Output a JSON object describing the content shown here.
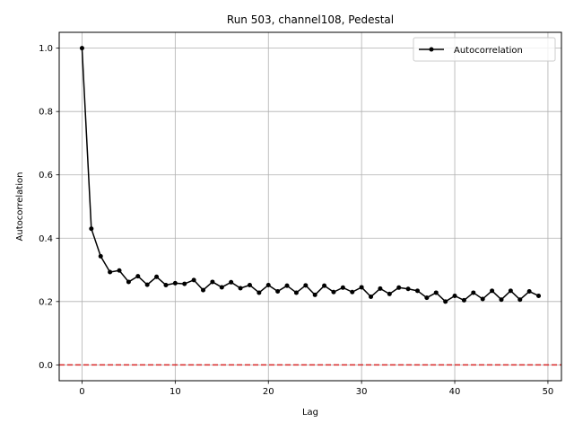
{
  "chart_data": {
    "type": "line",
    "title": "Run 503, channel108, Pedestal",
    "xlabel": "Lag",
    "ylabel": "Autocorrelation",
    "xlim": [
      -2.45,
      51.45
    ],
    "ylim": [
      -0.05,
      1.05
    ],
    "xticks": [
      0,
      10,
      20,
      30,
      40,
      50
    ],
    "yticks": [
      0.0,
      0.2,
      0.4,
      0.6,
      0.8,
      1.0
    ],
    "xtick_labels": [
      "0",
      "10",
      "20",
      "30",
      "40",
      "50"
    ],
    "ytick_labels": [
      "0.0",
      "0.2",
      "0.4",
      "0.6",
      "0.8",
      "1.0"
    ],
    "grid": true,
    "legend_position": "top-right",
    "series": [
      {
        "name": "Autocorrelation",
        "color": "#000000",
        "x": [
          0,
          1,
          2,
          3,
          4,
          5,
          6,
          7,
          8,
          9,
          10,
          11,
          12,
          13,
          14,
          15,
          16,
          17,
          18,
          19,
          20,
          21,
          22,
          23,
          24,
          25,
          26,
          27,
          28,
          29,
          30,
          31,
          32,
          33,
          34,
          35,
          36,
          37,
          38,
          39,
          40,
          41,
          42,
          43,
          44,
          45,
          46,
          47,
          48,
          49
        ],
        "y": [
          1.0,
          0.43,
          0.343,
          0.293,
          0.298,
          0.262,
          0.28,
          0.253,
          0.278,
          0.252,
          0.258,
          0.256,
          0.268,
          0.236,
          0.262,
          0.245,
          0.261,
          0.242,
          0.252,
          0.228,
          0.252,
          0.232,
          0.25,
          0.228,
          0.251,
          0.221,
          0.25,
          0.23,
          0.244,
          0.23,
          0.245,
          0.215,
          0.241,
          0.224,
          0.244,
          0.24,
          0.234,
          0.212,
          0.228,
          0.2,
          0.218,
          0.204,
          0.228,
          0.208,
          0.234,
          0.206,
          0.234,
          0.206,
          0.232,
          0.218
        ]
      }
    ],
    "reference_line": {
      "y": 0.0,
      "color": "#d62728",
      "style": "dashed"
    }
  }
}
